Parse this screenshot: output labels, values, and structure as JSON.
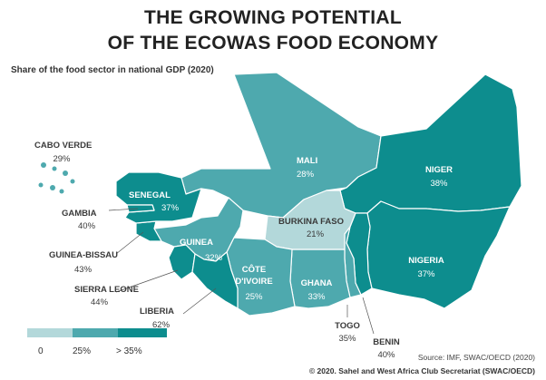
{
  "title_line1": "THE GROWING POTENTIAL",
  "title_line2": "OF THE ECOWAS FOOD ECONOMY",
  "subtitle": "Share of the food sector in national GDP (2020)",
  "colors": {
    "low": "#b3d8da",
    "mid": "#4ea9ae",
    "high": "#0d8d8e"
  },
  "countries": [
    {
      "name": "CABO VERDE",
      "value": "29%",
      "category": "mid"
    },
    {
      "name": "SENEGAL",
      "value": "37%",
      "category": "high"
    },
    {
      "name": "GAMBIA",
      "value": "40%",
      "category": "high"
    },
    {
      "name": "GUINEA-BISSAU",
      "value": "43%",
      "category": "high"
    },
    {
      "name": "GUINEA",
      "value": "32%",
      "category": "mid"
    },
    {
      "name": "SIERRA LEONE",
      "value": "44%",
      "category": "high"
    },
    {
      "name": "LIBERIA",
      "value": "62%",
      "category": "high"
    },
    {
      "name": "MALI",
      "value": "28%",
      "category": "mid"
    },
    {
      "name": "BURKINA FASO",
      "value": "21%",
      "category": "low"
    },
    {
      "name": "CÔTE D'IVOIRE",
      "value": "25%",
      "category": "mid"
    },
    {
      "name": "GHANA",
      "value": "33%",
      "category": "mid"
    },
    {
      "name": "TOGO",
      "value": "35%",
      "category": "mid"
    },
    {
      "name": "BENIN",
      "value": "40%",
      "category": "high"
    },
    {
      "name": "NIGER",
      "value": "38%",
      "category": "high"
    },
    {
      "name": "NIGERIA",
      "value": "37%",
      "category": "high"
    }
  ],
  "legend": {
    "ticks": [
      "0",
      "25%",
      "> 35%"
    ]
  },
  "source": "Source: IMF, SWAC/OECD (2020)",
  "copyright": "© 2020. Sahel and West Africa Club Secretariat (SWAC/OECD)"
}
